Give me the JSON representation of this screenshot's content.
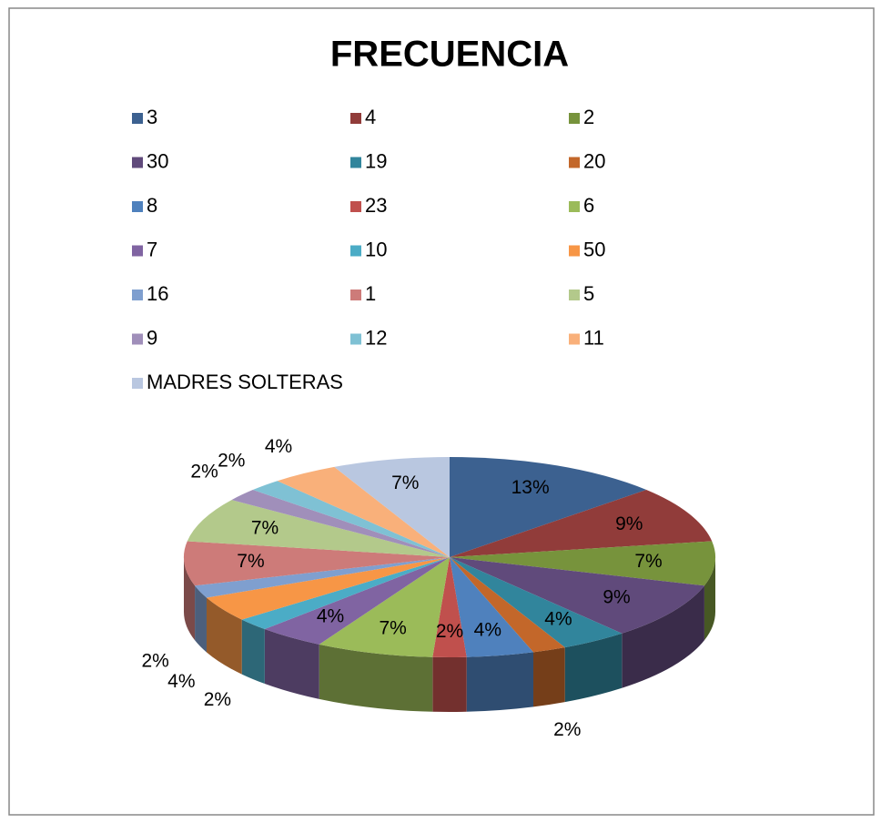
{
  "chart_data": {
    "type": "pie",
    "title": "FRECUENCIA",
    "categories": [
      "3",
      "4",
      "2",
      "30",
      "19",
      "20",
      "8",
      "23",
      "6",
      "7",
      "10",
      "50",
      "16",
      "1",
      "5",
      "9",
      "12",
      "11",
      "MADRES SOLTERAS"
    ],
    "values": [
      13,
      9,
      7,
      9,
      4,
      2,
      4,
      2,
      7,
      4,
      2,
      4,
      2,
      7,
      7,
      2,
      2,
      4,
      7
    ],
    "value_labels": [
      "13%",
      "9%",
      "7%",
      "9%",
      "4%",
      "2%",
      "4%",
      "2%",
      "7%",
      "4%",
      "2%",
      "4%",
      "2%",
      "7%",
      "7%",
      "2%",
      "2%",
      "4%",
      "7%"
    ],
    "colors": [
      "#3c6190",
      "#913c3a",
      "#77933c",
      "#604a7b",
      "#31859c",
      "#c3672a",
      "#4f81bd",
      "#c0504d",
      "#9bbb59",
      "#8064a2",
      "#4bacc6",
      "#f79646",
      "#7f9fcf",
      "#cd7b79",
      "#b3c98b",
      "#a08fba",
      "#7fc1d4",
      "#f9b07a",
      "#b9c7e0"
    ],
    "legend": "top"
  }
}
